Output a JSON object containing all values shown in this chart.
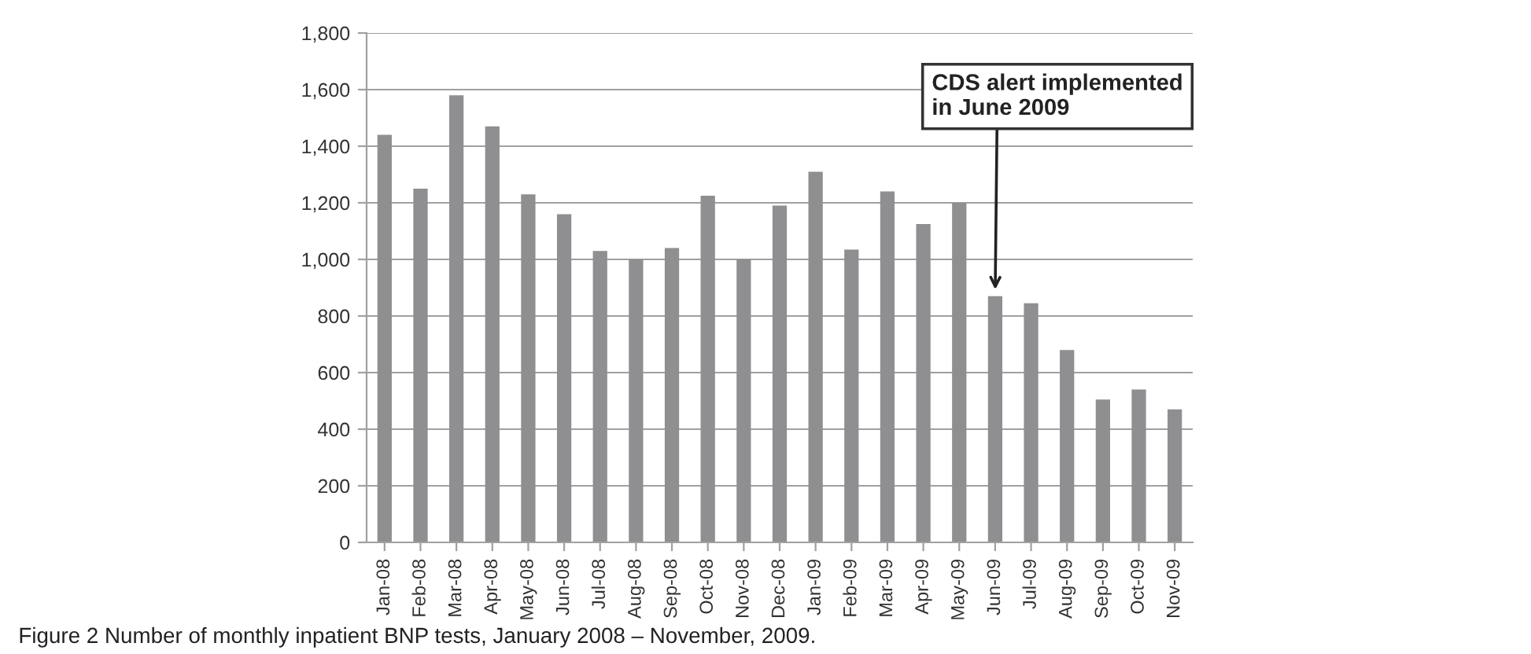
{
  "chart_data": {
    "type": "bar",
    "categories": [
      "Jan-08",
      "Feb-08",
      "Mar-08",
      "Apr-08",
      "May-08",
      "Jun-08",
      "Jul-08",
      "Aug-08",
      "Sep-08",
      "Oct-08",
      "Nov-08",
      "Dec-08",
      "Jan-09",
      "Feb-09",
      "Mar-09",
      "Apr-09",
      "May-09",
      "Jun-09",
      "Jul-09",
      "Aug-09",
      "Sep-09",
      "Oct-09",
      "Nov-09"
    ],
    "values": [
      1440,
      1250,
      1580,
      1470,
      1230,
      1160,
      1030,
      1000,
      1040,
      1225,
      1000,
      1190,
      1310,
      1035,
      1240,
      1125,
      1200,
      870,
      845,
      680,
      505,
      540,
      470
    ],
    "color": "#8f8f91",
    "ylim": [
      0,
      1800
    ],
    "yticks": [
      {
        "value": 0,
        "label": "0"
      },
      {
        "value": 200,
        "label": "200"
      },
      {
        "value": 400,
        "label": "400"
      },
      {
        "value": 600,
        "label": "600"
      },
      {
        "value": 800,
        "label": "800"
      },
      {
        "value": 1000,
        "label": "1,000"
      },
      {
        "value": 1200,
        "label": "1,200"
      },
      {
        "value": 1400,
        "label": "1,400"
      },
      {
        "value": 1600,
        "label": "1,600"
      },
      {
        "value": 1800,
        "label": "1,800"
      }
    ],
    "grid": "y",
    "annotations": [
      {
        "text": "CDS alert implemented\nin June 2009",
        "x": "Jun-09",
        "y": 870
      },
      "Figure 2 Number of monthly inpatient BNP tests, January 2008 – November, 2009."
    ]
  }
}
